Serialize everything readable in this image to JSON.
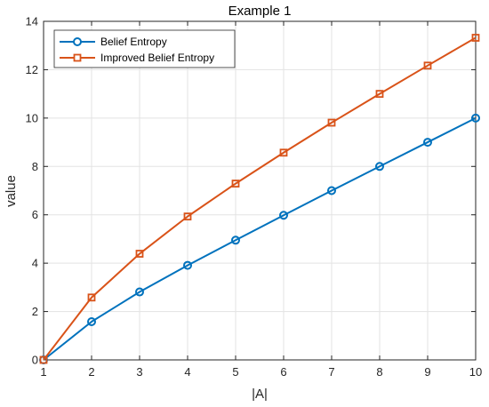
{
  "chart_data": {
    "type": "line",
    "title": "Example 1",
    "xlabel": "|A|",
    "ylabel": "value",
    "xlim": [
      1,
      10
    ],
    "ylim": [
      0,
      14
    ],
    "x": [
      1,
      2,
      3,
      4,
      5,
      6,
      7,
      8,
      9,
      10
    ],
    "xticks": [
      "1",
      "2",
      "3",
      "4",
      "5",
      "6",
      "7",
      "8",
      "9",
      "10"
    ],
    "yticks": [
      "0",
      "2",
      "4",
      "6",
      "8",
      "10",
      "12",
      "14"
    ],
    "grid": true,
    "legend_position": "top-left",
    "series": [
      {
        "name": "Belief Entropy",
        "color": "#0072BD",
        "marker": "circle",
        "values": [
          0,
          1.58,
          2.81,
          3.91,
          4.95,
          5.98,
          7.0,
          8.0,
          9.0,
          10.0
        ]
      },
      {
        "name": "Improved Belief Entropy",
        "color": "#D95319",
        "marker": "square",
        "values": [
          0,
          2.58,
          4.39,
          5.93,
          7.29,
          8.57,
          9.81,
          11.0,
          12.17,
          13.32
        ]
      }
    ]
  }
}
